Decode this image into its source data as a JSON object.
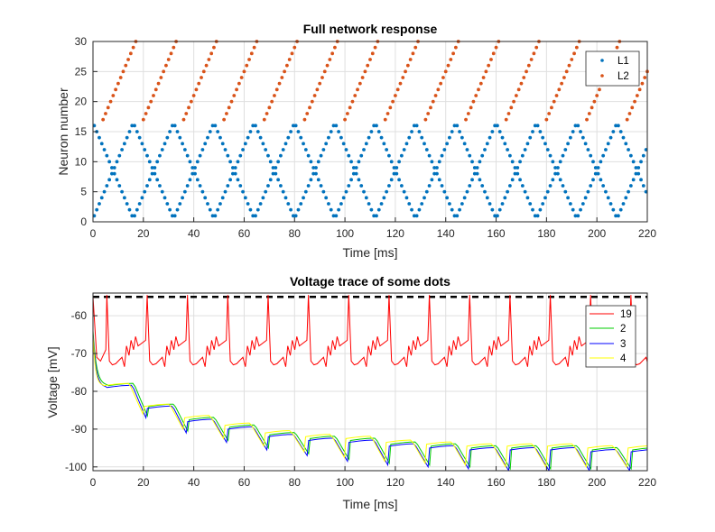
{
  "chart_data": [
    {
      "type": "scatter",
      "title": "Full network response",
      "xlabel": "Time [ms]",
      "ylabel": "Neuron number",
      "xlim": [
        0,
        220
      ],
      "ylim": [
        0,
        30
      ],
      "xticks": [
        "0",
        "20",
        "40",
        "60",
        "80",
        "100",
        "120",
        "140",
        "160",
        "180",
        "200",
        "220"
      ],
      "yticks": [
        "0",
        "5",
        "10",
        "15",
        "20",
        "25",
        "30"
      ],
      "legend_position": "top-right",
      "series": [
        {
          "name": "L1",
          "color": "#0072BD",
          "marker": "dot",
          "pattern": "zigzag between neuron 1 and 16, two interleaved phases, one neuron per ~1 ms, crossings near neuron 8-9",
          "sweeps": [
            {
              "t_start": 0.5,
              "n_start": 16,
              "n_end": 1,
              "step_ms": 1.0
            },
            {
              "t_start": 0.5,
              "n_start": 1,
              "n_end": 16,
              "step_ms": 1.0
            },
            {
              "t_start": 16.5,
              "n_start": 16,
              "n_end": 1,
              "step_ms": 1.0
            },
            {
              "t_start": 16.5,
              "n_start": 1,
              "n_end": 16,
              "step_ms": 1.0
            },
            {
              "t_start": 32.5,
              "n_start": 16,
              "n_end": 1,
              "step_ms": 1.0
            },
            {
              "t_start": 32.5,
              "n_start": 1,
              "n_end": 16,
              "step_ms": 1.0
            },
            {
              "t_start": 48.5,
              "n_start": 16,
              "n_end": 1,
              "step_ms": 1.0
            },
            {
              "t_start": 48.5,
              "n_start": 1,
              "n_end": 16,
              "step_ms": 1.0
            },
            {
              "t_start": 64.5,
              "n_start": 16,
              "n_end": 1,
              "step_ms": 1.0
            },
            {
              "t_start": 64.5,
              "n_start": 1,
              "n_end": 16,
              "step_ms": 1.0
            },
            {
              "t_start": 80.5,
              "n_start": 16,
              "n_end": 1,
              "step_ms": 1.0
            },
            {
              "t_start": 80.5,
              "n_start": 1,
              "n_end": 16,
              "step_ms": 1.0
            },
            {
              "t_start": 96.5,
              "n_start": 16,
              "n_end": 1,
              "step_ms": 1.0
            },
            {
              "t_start": 96.5,
              "n_start": 1,
              "n_end": 16,
              "step_ms": 1.0
            },
            {
              "t_start": 112.5,
              "n_start": 16,
              "n_end": 1,
              "step_ms": 1.0
            },
            {
              "t_start": 112.5,
              "n_start": 1,
              "n_end": 16,
              "step_ms": 1.0
            },
            {
              "t_start": 128.5,
              "n_start": 16,
              "n_end": 1,
              "step_ms": 1.0
            },
            {
              "t_start": 128.5,
              "n_start": 1,
              "n_end": 16,
              "step_ms": 1.0
            },
            {
              "t_start": 144.5,
              "n_start": 16,
              "n_end": 1,
              "step_ms": 1.0
            },
            {
              "t_start": 144.5,
              "n_start": 1,
              "n_end": 16,
              "step_ms": 1.0
            },
            {
              "t_start": 160.5,
              "n_start": 16,
              "n_end": 1,
              "step_ms": 1.0
            },
            {
              "t_start": 160.5,
              "n_start": 1,
              "n_end": 16,
              "step_ms": 1.0
            },
            {
              "t_start": 176.5,
              "n_start": 16,
              "n_end": 1,
              "step_ms": 1.0
            },
            {
              "t_start": 176.5,
              "n_start": 1,
              "n_end": 16,
              "step_ms": 1.0
            },
            {
              "t_start": 192.5,
              "n_start": 16,
              "n_end": 1,
              "step_ms": 1.0
            },
            {
              "t_start": 192.5,
              "n_start": 1,
              "n_end": 16,
              "step_ms": 1.0
            },
            {
              "t_start": 208.5,
              "n_start": 16,
              "n_end": 5,
              "step_ms": 1.0
            },
            {
              "t_start": 208.5,
              "n_start": 1,
              "n_end": 12,
              "step_ms": 1.0
            }
          ]
        },
        {
          "name": "L2",
          "color": "#D95319",
          "marker": "dot",
          "pattern": "diagonal sweeps from neuron 17 to 30, one neuron per ~1 ms, repeating every 16 ms",
          "sweeps": [
            {
              "t_start": 4.0,
              "n_start": 17,
              "n_end": 30,
              "step_ms": 1.0
            },
            {
              "t_start": 20.0,
              "n_start": 17,
              "n_end": 30,
              "step_ms": 1.0
            },
            {
              "t_start": 36.0,
              "n_start": 17,
              "n_end": 30,
              "step_ms": 1.0
            },
            {
              "t_start": 52.0,
              "n_start": 17,
              "n_end": 30,
              "step_ms": 1.0
            },
            {
              "t_start": 68.0,
              "n_start": 17,
              "n_end": 30,
              "step_ms": 1.0
            },
            {
              "t_start": 84.0,
              "n_start": 17,
              "n_end": 30,
              "step_ms": 1.0
            },
            {
              "t_start": 100.0,
              "n_start": 17,
              "n_end": 30,
              "step_ms": 1.0
            },
            {
              "t_start": 116.0,
              "n_start": 17,
              "n_end": 30,
              "step_ms": 1.0
            },
            {
              "t_start": 132.0,
              "n_start": 17,
              "n_end": 30,
              "step_ms": 1.0
            },
            {
              "t_start": 148.0,
              "n_start": 17,
              "n_end": 30,
              "step_ms": 1.0
            },
            {
              "t_start": 164.0,
              "n_start": 17,
              "n_end": 30,
              "step_ms": 1.0
            },
            {
              "t_start": 180.0,
              "n_start": 17,
              "n_end": 30,
              "step_ms": 1.0
            },
            {
              "t_start": 196.0,
              "n_start": 17,
              "n_end": 30,
              "step_ms": 1.0
            },
            {
              "t_start": 212.0,
              "n_start": 17,
              "n_end": 25,
              "step_ms": 1.0
            }
          ]
        }
      ]
    },
    {
      "type": "line",
      "title": "Voltage trace of some dots",
      "xlabel": "Time [ms]",
      "ylabel": "Voltage [mV]",
      "xlim": [
        0,
        220
      ],
      "ylim": [
        -101,
        -54
      ],
      "xticks": [
        "0",
        "20",
        "40",
        "60",
        "80",
        "100",
        "120",
        "140",
        "160",
        "180",
        "200",
        "220"
      ],
      "yticks": [
        "-60",
        "-70",
        "-80",
        "-90",
        "-100"
      ],
      "legend_position": "top-right",
      "threshold": {
        "value": -55,
        "style": "dashed",
        "color": "#000000"
      },
      "series": [
        {
          "name": "19",
          "color": "#FF0000",
          "start": {
            "t": 0,
            "v": -55
          },
          "period_ms": 16,
          "first_spike_ms": 5.5,
          "trough_mV": -73,
          "ripple_mV": [
            -71,
            -68,
            -66.5,
            -65.5
          ],
          "spike_peak_mV": -54.5
        },
        {
          "name": "2",
          "color": "#00CC00",
          "start": {
            "t": 0,
            "v": -64
          },
          "phase_ms": 0.6,
          "period_ms": 16,
          "sawtooth": [
            {
              "t": 5,
              "low": -78.5,
              "high": -78.5
            },
            {
              "t": 21,
              "low": -86.5,
              "high": -84
            },
            {
              "t": 37,
              "low": -90.5,
              "high": -87.5
            },
            {
              "t": 53,
              "low": -93,
              "high": -89.5
            },
            {
              "t": 69,
              "low": -95,
              "high": -91.5
            },
            {
              "t": 85,
              "low": -96.5,
              "high": -92.5
            },
            {
              "t": 101,
              "low": -98,
              "high": -93
            },
            {
              "t": 117,
              "low": -99,
              "high": -94
            },
            {
              "t": 133,
              "low": -99.5,
              "high": -94.5
            },
            {
              "t": 149,
              "low": -100,
              "high": -95
            },
            {
              "t": 165,
              "low": -100.5,
              "high": -95
            },
            {
              "t": 181,
              "low": -100.5,
              "high": -95
            },
            {
              "t": 197,
              "low": -100.5,
              "high": -95.5
            },
            {
              "t": 213,
              "low": -100.5,
              "high": -95.5
            }
          ]
        },
        {
          "name": "3",
          "color": "#0000FF",
          "start": {
            "t": 0,
            "v": -65
          },
          "phase_ms": 0.0,
          "period_ms": 16,
          "sawtooth": [
            {
              "t": 5,
              "low": -79,
              "high": -78.5
            },
            {
              "t": 21,
              "low": -87,
              "high": -84.5
            },
            {
              "t": 37,
              "low": -91,
              "high": -88
            },
            {
              "t": 53,
              "low": -93.5,
              "high": -90
            },
            {
              "t": 69,
              "low": -95.5,
              "high": -92
            },
            {
              "t": 85,
              "low": -97,
              "high": -93
            },
            {
              "t": 101,
              "low": -98.5,
              "high": -93.5
            },
            {
              "t": 117,
              "low": -99.5,
              "high": -94.5
            },
            {
              "t": 133,
              "low": -100,
              "high": -95
            },
            {
              "t": 149,
              "low": -100.5,
              "high": -95.5
            },
            {
              "t": 165,
              "low": -101,
              "high": -95.5
            },
            {
              "t": 181,
              "low": -101,
              "high": -95.5
            },
            {
              "t": 197,
              "low": -101,
              "high": -96
            },
            {
              "t": 213,
              "low": -101,
              "high": -96
            }
          ]
        },
        {
          "name": "4",
          "color": "#FFFF00",
          "start": {
            "t": 0,
            "v": -65
          },
          "phase_ms": -1.2,
          "period_ms": 16,
          "sawtooth": [
            {
              "t": 5,
              "low": -78.5,
              "high": -78
            },
            {
              "t": 21,
              "low": -86,
              "high": -84
            },
            {
              "t": 37,
              "low": -90,
              "high": -87
            },
            {
              "t": 53,
              "low": -92.5,
              "high": -89
            },
            {
              "t": 69,
              "low": -94.5,
              "high": -91
            },
            {
              "t": 85,
              "low": -96,
              "high": -92
            },
            {
              "t": 101,
              "low": -97.5,
              "high": -92.5
            },
            {
              "t": 117,
              "low": -98.5,
              "high": -93.5
            },
            {
              "t": 133,
              "low": -99,
              "high": -94
            },
            {
              "t": 149,
              "low": -99.5,
              "high": -94.5
            },
            {
              "t": 165,
              "low": -100,
              "high": -94.5
            },
            {
              "t": 181,
              "low": -100,
              "high": -94.5
            },
            {
              "t": 197,
              "low": -100,
              "high": -95
            },
            {
              "t": 213,
              "low": -100,
              "high": -95
            }
          ]
        }
      ]
    }
  ]
}
